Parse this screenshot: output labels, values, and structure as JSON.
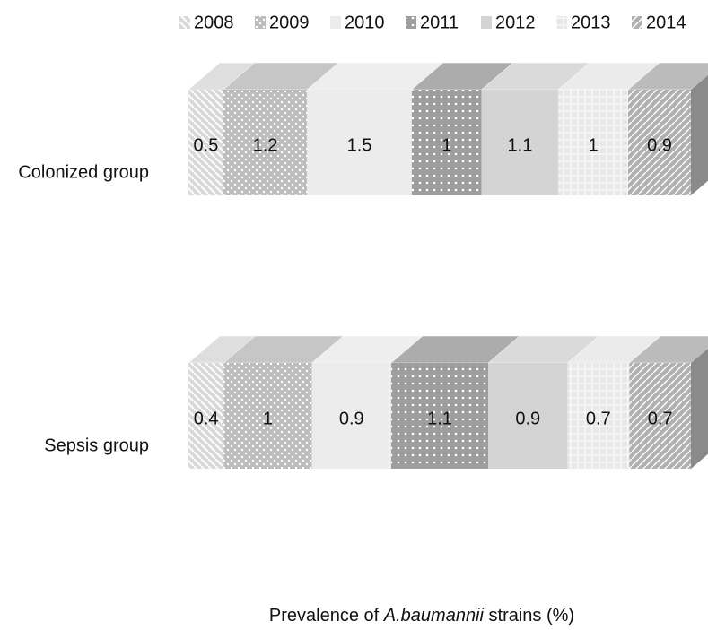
{
  "chart_data": {
    "type": "bar",
    "stacked": "percent",
    "orientation": "horizontal",
    "x_label": [
      "Prevalence of ",
      "A.baumannii",
      " strains (%)"
    ],
    "categories": [
      "Colonized group",
      "Sepsis group"
    ],
    "series": [
      {
        "name": "2008",
        "color": "#d9d9d9",
        "values": [
          0.5,
          0.4
        ]
      },
      {
        "name": "2009",
        "color": "#bdbdbd",
        "values": [
          1.2,
          1
        ]
      },
      {
        "name": "2010",
        "color": "#ececec",
        "values": [
          1.5,
          0.9
        ]
      },
      {
        "name": "2011",
        "color": "#9e9e9e",
        "values": [
          1,
          1.1
        ]
      },
      {
        "name": "2012",
        "color": "#d4d4d4",
        "values": [
          1.1,
          0.9
        ]
      },
      {
        "name": "2013",
        "color": "#e8e8e8",
        "values": [
          1,
          0.7
        ]
      },
      {
        "name": "2014",
        "color": "#b0b0b0",
        "values": [
          0.9,
          0.7
        ]
      }
    ],
    "legend": "top"
  }
}
